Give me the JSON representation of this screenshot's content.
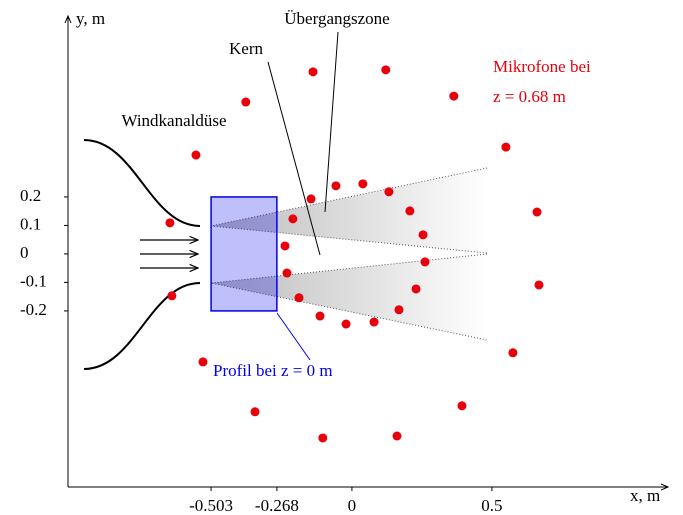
{
  "chart_data": {
    "type": "scatter",
    "x_label": "x, m",
    "y_label": "y, m",
    "xlim": [
      -1.014,
      1.136
    ],
    "ylim": [
      -0.818,
      0.828
    ],
    "xticks": [
      -0.503,
      -0.268,
      0,
      0.5
    ],
    "yticks": [
      0.2,
      0.1,
      0,
      -0.1,
      -0.2
    ],
    "series": [
      {
        "name": "Mikrofone bei",
        "color": "#e8000b",
        "x": [
          -0.139,
          0.121,
          0.364,
          -0.379,
          -0.557,
          0.55,
          0.661,
          0.668,
          0.575,
          -0.65,
          -0.643,
          -0.532,
          -0.346,
          -0.104,
          0.161,
          0.393,
          -0.146,
          -0.057,
          0.039,
          0.132,
          0.207,
          0.254,
          0.261,
          0.229,
          0.168,
          0.079,
          -0.021,
          -0.114,
          -0.189,
          -0.232,
          -0.239,
          -0.211
        ],
        "values": [
          0.639,
          0.646,
          0.554,
          0.533,
          0.347,
          0.375,
          0.147,
          -0.109,
          -0.347,
          0.109,
          -0.147,
          -0.379,
          -0.554,
          -0.646,
          -0.639,
          -0.533,
          0.193,
          0.239,
          0.246,
          0.218,
          0.151,
          0.067,
          -0.028,
          -0.123,
          -0.196,
          -0.239,
          -0.246,
          -0.218,
          -0.154,
          -0.067,
          0.028,
          0.123
        ]
      }
    ],
    "mic_label_2": "z = 0.68 m",
    "profile": {
      "label": "Profil bei z = 0 m",
      "color": "#0000ee",
      "x": [
        -0.503,
        -0.268
      ],
      "y": [
        -0.2,
        0.2
      ]
    },
    "annotations": [
      "Übergangszone",
      "Kern",
      "Windkanaldüse"
    ]
  }
}
